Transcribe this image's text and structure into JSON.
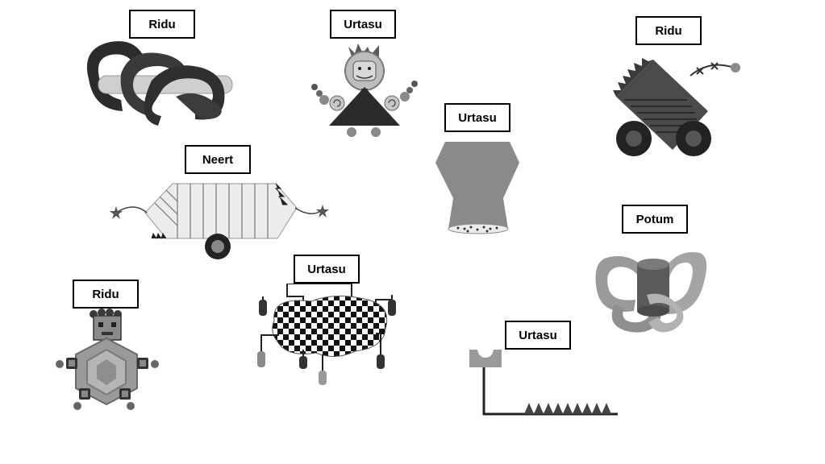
{
  "labels": {
    "chains": "Ridu",
    "robot": "Urtasu",
    "tank": "Ridu",
    "neert": "Neert",
    "vase": "Urtasu",
    "potum": "Potum",
    "turtle": "Ridu",
    "spider": "Urtasu",
    "hook": "Urtasu"
  },
  "figures": {
    "chains": "chain-links-icon",
    "robot": "robot-figure-icon",
    "tank": "tank-creature-icon",
    "neert": "wheeled-shell-icon",
    "vase": "hourglass-vase-icon",
    "potum": "ribbon-cylinder-icon",
    "turtle": "hexagon-turtle-icon",
    "spider": "checkered-spider-icon",
    "hook": "hook-spikes-icon"
  },
  "colors": {
    "background": "#ffffff",
    "dark": "#2b2b2b",
    "mid": "#6b6b6b",
    "light": "#b0b0b0",
    "pale": "#e3e3e3"
  }
}
